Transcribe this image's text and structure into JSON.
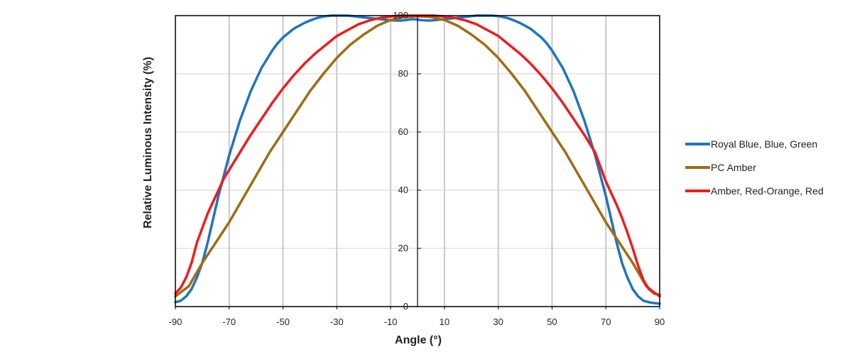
{
  "chart_data": {
    "type": "line",
    "title": "",
    "xlabel": "Angle (°)",
    "ylabel": "Relative Luminous Intensity (%)",
    "xlim": [
      -90,
      90
    ],
    "ylim": [
      0,
      100
    ],
    "xticks": [
      -90,
      -70,
      -50,
      -30,
      -10,
      10,
      30,
      50,
      70,
      90
    ],
    "yticks": [
      0,
      20,
      40,
      60,
      80,
      100
    ],
    "grid": true,
    "legend_position": "right",
    "series": [
      {
        "name": "Royal Blue, Blue, Green",
        "color": "#1f74bf",
        "x": [
          -90,
          -88,
          -86,
          -84,
          -82,
          -80,
          -78,
          -76,
          -74,
          -72,
          -70,
          -68,
          -66,
          -64,
          -62,
          -60,
          -58,
          -56,
          -54,
          -52,
          -50,
          -48,
          -46,
          -44,
          -42,
          -40,
          -38,
          -36,
          -34,
          -32,
          -30,
          -28,
          -26,
          -24,
          -22,
          -20,
          -18,
          -16,
          -14,
          -12,
          -10,
          -8,
          -6,
          -4,
          -2,
          0,
          2,
          4,
          6,
          8,
          10,
          12,
          14,
          16,
          18,
          20,
          22,
          24,
          26,
          28,
          30,
          32,
          34,
          36,
          38,
          40,
          42,
          44,
          46,
          48,
          50,
          52,
          54,
          56,
          58,
          60,
          62,
          64,
          66,
          68,
          70,
          72,
          74,
          76,
          78,
          80,
          82,
          84,
          86,
          88,
          90
        ],
        "values": [
          1.5,
          2,
          3.5,
          6,
          10,
          15,
          22,
          30,
          38,
          45,
          52,
          58,
          64,
          69,
          74,
          78,
          82,
          85,
          88,
          90.5,
          92.5,
          94,
          95.5,
          96.5,
          97.5,
          98.3,
          99,
          99.5,
          99.8,
          100,
          100,
          100,
          100,
          99.8,
          99.6,
          99.4,
          99.2,
          99,
          98.8,
          98.6,
          98.4,
          98.3,
          98.3,
          98.5,
          98.8,
          98.6,
          98.4,
          98.3,
          98.4,
          98.6,
          98.8,
          99,
          99.2,
          99.4,
          99.6,
          99.8,
          100,
          100,
          100,
          100,
          99.8,
          99.5,
          99,
          98.3,
          97.5,
          96.5,
          95.5,
          94,
          92.5,
          90.5,
          88,
          85,
          82,
          78,
          74,
          69,
          64,
          58,
          52,
          45,
          38,
          30,
          22,
          15,
          10,
          6,
          3.5,
          2,
          1.5,
          1.2,
          1
        ]
      },
      {
        "name": "PC Amber",
        "color": "#a06c12",
        "x": [
          -90,
          -85,
          -80,
          -75,
          -70,
          -65,
          -60,
          -55,
          -50,
          -45,
          -40,
          -35,
          -30,
          -25,
          -20,
          -15,
          -10,
          -5,
          0,
          5,
          10,
          15,
          20,
          25,
          30,
          35,
          40,
          45,
          50,
          55,
          60,
          65,
          70,
          75,
          80,
          85,
          90
        ],
        "values": [
          3.5,
          7,
          15,
          22,
          29,
          37,
          45,
          53,
          60,
          67,
          74,
          80,
          85.5,
          90,
          93.5,
          96.5,
          98.5,
          99.5,
          99.8,
          99.5,
          98.5,
          96.5,
          93.5,
          90,
          85.5,
          80,
          74,
          67,
          60,
          53,
          45,
          37,
          29,
          22,
          15,
          7,
          3.5
        ]
      },
      {
        "name": "Amber, Red-Orange, Red",
        "color": "#ee1c1c",
        "x": [
          -90,
          -88,
          -86,
          -84,
          -82,
          -80,
          -78,
          -76,
          -74,
          -72,
          -70,
          -66,
          -62,
          -58,
          -54,
          -50,
          -46,
          -42,
          -38,
          -34,
          -30,
          -26,
          -22,
          -18,
          -14,
          -10,
          -6,
          -2,
          0,
          2,
          6,
          10,
          14,
          18,
          22,
          26,
          30,
          34,
          38,
          42,
          46,
          50,
          54,
          58,
          62,
          66,
          70,
          72,
          74,
          76,
          78,
          80,
          82,
          84,
          86,
          88,
          90
        ],
        "values": [
          4.5,
          6.5,
          10,
          15,
          22,
          27,
          32,
          36,
          40,
          44,
          47,
          53,
          59,
          64.5,
          70,
          75,
          79.5,
          83.5,
          87,
          90,
          93,
          95,
          97,
          98.3,
          99.2,
          99.7,
          100,
          100,
          100,
          100,
          100,
          99.7,
          99.2,
          98.3,
          97,
          95,
          93,
          90,
          87,
          83.5,
          79.5,
          75,
          70,
          64.5,
          59,
          53,
          43,
          39,
          35,
          30.5,
          25.5,
          20,
          14,
          9,
          6,
          4.5,
          4
        ]
      }
    ]
  }
}
